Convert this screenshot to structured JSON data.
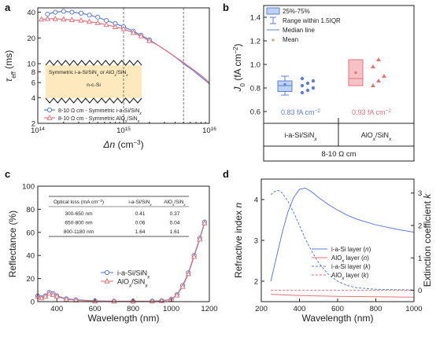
{
  "colors": {
    "blue": "#5b7fd9",
    "red": "#e5727a",
    "blue_fill": "#bcd3f2",
    "red_fill": "#f7c2c5",
    "sample_fill": "#fde9bd",
    "grid": "#555555"
  },
  "chart_data": [
    {
      "panel": "a",
      "type": "line",
      "xlabel": "Δn (cm⁻³)",
      "ylabel": "τeff (ms)",
      "xscale": "log",
      "yscale": "log",
      "xlim": [
        100000000000000.0,
        1e+16
      ],
      "ylim": [
        2,
        45
      ],
      "xticks": [
        {
          "v": 100000000000000.0,
          "base": "10",
          "exp": "14"
        },
        {
          "v": 1000000000000000.0,
          "base": "10",
          "exp": "15"
        },
        {
          "v": 1e+16,
          "base": "10",
          "exp": "16"
        }
      ],
      "yticks": [
        {
          "v": 2,
          "label": "2"
        },
        {
          "v": 4,
          "label": "4"
        },
        {
          "v": 6,
          "label": "6"
        },
        {
          "v": 8,
          "label": "8"
        },
        {
          "v": 10,
          "label": "10"
        },
        {
          "v": 20,
          "label": "20"
        },
        {
          "v": 40,
          "label": "40"
        }
      ],
      "vlines": [
        1000000000000000.0,
        5000000000000000.0
      ],
      "inset_top_label": "Symmetric i-a-Si/SiNx or AlOx/SiNx",
      "inset_mid_label": "n-c-Si",
      "series": [
        {
          "name": "8-10 Ω cm - Symmetric i-a-Si/SiNx",
          "color": "blue",
          "marker": "circle",
          "x": [
            130000000000000.0,
            160000000000000.0,
            200000000000000.0,
            250000000000000.0,
            320000000000000.0,
            400000000000000.0,
            500000000000000.0,
            630000000000000.0,
            800000000000000.0,
            1000000000000000.0,
            1300000000000000.0,
            1600000000000000.0,
            2000000000000000.0,
            2500000000000000.0,
            3200000000000000.0,
            4000000000000000.0,
            5000000000000000.0,
            6300000000000000.0,
            8000000000000000.0,
            1e+16
          ],
          "y": [
            38,
            40,
            41,
            40,
            39,
            37,
            35,
            32,
            29.5,
            27,
            24,
            21.5,
            19,
            16.5,
            14,
            12,
            10,
            8.5,
            7,
            5.8
          ]
        },
        {
          "name": "8-10 Ω cm - Symmetric AlOx/SiNx",
          "color": "red",
          "marker": "triangle",
          "x": [
            110000000000000.0,
            130000000000000.0,
            160000000000000.0,
            200000000000000.0,
            250000000000000.0,
            320000000000000.0,
            400000000000000.0,
            500000000000000.0,
            630000000000000.0,
            800000000000000.0,
            1000000000000000.0,
            1300000000000000.0,
            1600000000000000.0,
            2000000000000000.0,
            2500000000000000.0,
            3200000000000000.0,
            4000000000000000.0,
            5000000000000000.0,
            6300000000000000.0,
            8000000000000000.0,
            1e+16
          ],
          "y": [
            33,
            33.5,
            33.5,
            33,
            32.5,
            32,
            31,
            30,
            28.5,
            27,
            25.5,
            23,
            21,
            18.5,
            16.5,
            14,
            12,
            10.3,
            8.7,
            7.3,
            6
          ]
        }
      ]
    },
    {
      "panel": "b",
      "type": "box",
      "ylabel": "J0 (fA cm⁻²)",
      "ylim": [
        0.5,
        1.5
      ],
      "yticks": [
        0.6,
        0.8,
        1.0,
        1.2,
        1.4
      ],
      "ytick_labels": [
        "0.6",
        "0.8",
        "1.0",
        "1.2",
        "1.4"
      ],
      "groups": [
        {
          "label": "i-a-Si/SiNx",
          "color": "blue",
          "q1": 0.77,
          "q3": 0.86,
          "median": 0.82,
          "mean": 0.83,
          "whisker_low": 0.74,
          "whisker_high": 0.9,
          "points": [
            0.76,
            0.78,
            0.8,
            0.82,
            0.84,
            0.86,
            0.88
          ],
          "annotation": "0.83 fA cm⁻²"
        },
        {
          "label": "AlOx/SiNx",
          "color": "red",
          "q1": 0.82,
          "q3": 1.04,
          "median": 0.88,
          "mean": 0.93,
          "whisker_low": 0.82,
          "whisker_high": 1.04,
          "points": [
            0.82,
            0.86,
            0.9,
            0.98,
            1.04
          ],
          "annotation": "0.93 fA cm⁻²"
        }
      ],
      "group_footer": "8-10 Ω cm",
      "legend": [
        "25%-75%",
        "Range within 1.5IQR",
        "Median line",
        "Mean"
      ]
    },
    {
      "panel": "c",
      "type": "line",
      "xlabel": "Wavelength (nm)",
      "ylabel": "Reflectance (%)",
      "xlim": [
        300,
        1200
      ],
      "ylim": [
        0,
        100
      ],
      "xticks": [
        400,
        600,
        800,
        1000,
        1200
      ],
      "yticks": [
        0,
        20,
        40,
        60,
        80,
        100
      ],
      "series": [
        {
          "name": "i-a-Si/SiNx",
          "color": "blue",
          "marker": "circle",
          "x": [
            300,
            320,
            340,
            360,
            380,
            400,
            450,
            500,
            600,
            700,
            800,
            900,
            950,
            1000,
            1030,
            1060,
            1090,
            1120,
            1150,
            1175
          ],
          "y": [
            5,
            3.5,
            5,
            8,
            7,
            5,
            2.5,
            1.6,
            0.6,
            0.4,
            0.4,
            0.5,
            0.8,
            2,
            6,
            14,
            25,
            40,
            55,
            69
          ]
        },
        {
          "name": "AlOx/SiNx",
          "color": "red",
          "marker": "triangle",
          "x": [
            300,
            320,
            340,
            360,
            380,
            400,
            450,
            500,
            600,
            700,
            800,
            900,
            950,
            1000,
            1030,
            1060,
            1090,
            1120,
            1150,
            1175
          ],
          "y": [
            4.5,
            3,
            4.5,
            7,
            6,
            4.5,
            2,
            1.2,
            0.4,
            0.3,
            0.3,
            0.4,
            0.7,
            1.8,
            5.5,
            13,
            24,
            39,
            54,
            68
          ]
        }
      ],
      "table": {
        "headers": [
          "Optical loss (mA cm⁻²)",
          "i-a-Si/SiNx",
          "AlOx/SiNx"
        ],
        "rows": [
          [
            "300-650 nm",
            "0.41",
            "0.37"
          ],
          [
            "650-800 nm",
            "0.06",
            "0.04"
          ],
          [
            "800-1180 nm",
            "1.64",
            "1.61"
          ]
        ]
      }
    },
    {
      "panel": "d",
      "type": "line",
      "xlabel": "Wavelength (nm)",
      "ylabel": "Refractive index n",
      "y2label": "Extinction coefficient k",
      "xlim": [
        200,
        1000
      ],
      "ylim": [
        1.5,
        4.5
      ],
      "y2lim": [
        -0.35,
        3.43
      ],
      "xticks": [
        200,
        400,
        600,
        800,
        1000
      ],
      "yticks": [
        2,
        3,
        4
      ],
      "y2ticks": [
        0,
        1,
        2,
        3
      ],
      "series": [
        {
          "name": "i-a-Si layer (n)",
          "color": "blue",
          "dash": false,
          "axis": "left",
          "x": [
            250,
            280,
            310,
            340,
            370,
            400,
            430,
            460,
            500,
            550,
            600,
            650,
            700,
            800,
            900,
            1000
          ],
          "y": [
            2.0,
            2.6,
            3.2,
            3.7,
            4.05,
            4.25,
            4.28,
            4.2,
            4.05,
            3.88,
            3.74,
            3.62,
            3.52,
            3.38,
            3.28,
            3.2
          ]
        },
        {
          "name": "AlOx layer (n)",
          "color": "red",
          "dash": false,
          "axis": "left",
          "x": [
            250,
            300,
            400,
            500,
            600,
            700,
            800,
            900,
            1000
          ],
          "y": [
            1.68,
            1.67,
            1.65,
            1.64,
            1.63,
            1.625,
            1.62,
            1.615,
            1.61
          ]
        },
        {
          "name": "i-a-Si layer (k)",
          "color": "blue",
          "dash": true,
          "axis": "right",
          "x": [
            250,
            270,
            290,
            310,
            340,
            370,
            400,
            430,
            460,
            500,
            550,
            600,
            650,
            700,
            800,
            900,
            1000
          ],
          "y": [
            2.95,
            3.05,
            3.08,
            3.0,
            2.75,
            2.4,
            2.0,
            1.6,
            1.25,
            0.85,
            0.5,
            0.28,
            0.15,
            0.08,
            0.03,
            0.02,
            0.01
          ]
        },
        {
          "name": "AlOx layer (k)",
          "color": "red",
          "dash": true,
          "axis": "right",
          "x": [
            250,
            1000
          ],
          "y": [
            0,
            0
          ]
        }
      ]
    }
  ]
}
